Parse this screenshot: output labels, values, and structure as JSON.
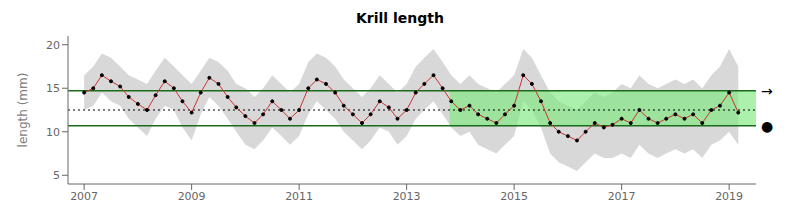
{
  "chart_data": {
    "type": "line",
    "title": "Krill length",
    "ylabel": "length (mm)",
    "xlim": [
      2006.7,
      2019.5
    ],
    "ylim": [
      4,
      21
    ],
    "xticks": [
      2007,
      2009,
      2011,
      2013,
      2015,
      2017,
      2019
    ],
    "yticks": [
      5,
      10,
      15,
      20
    ],
    "grid": false,
    "color": "#cc3333",
    "marker": "o",
    "marker_color": "black",
    "x": [
      2007.0,
      2007.17,
      2007.33,
      2007.5,
      2007.67,
      2007.83,
      2008.0,
      2008.17,
      2008.33,
      2008.5,
      2008.67,
      2008.83,
      2009.0,
      2009.17,
      2009.33,
      2009.5,
      2009.67,
      2009.83,
      2010.0,
      2010.17,
      2010.33,
      2010.5,
      2010.67,
      2010.83,
      2011.0,
      2011.17,
      2011.33,
      2011.5,
      2011.67,
      2011.83,
      2012.0,
      2012.17,
      2012.33,
      2012.5,
      2012.67,
      2012.83,
      2013.0,
      2013.17,
      2013.33,
      2013.5,
      2013.67,
      2013.83,
      2014.0,
      2014.17,
      2014.33,
      2014.5,
      2014.67,
      2014.83,
      2015.0,
      2015.17,
      2015.33,
      2015.5,
      2015.67,
      2015.83,
      2016.0,
      2016.17,
      2016.33,
      2016.5,
      2016.67,
      2016.83,
      2017.0,
      2017.17,
      2017.33,
      2017.5,
      2017.67,
      2017.83,
      2018.0,
      2018.17,
      2018.33,
      2018.5,
      2018.67,
      2018.83,
      2019.0,
      2019.17
    ],
    "values": [
      14.5,
      15.0,
      16.5,
      15.8,
      15.2,
      14.0,
      13.2,
      12.5,
      14.2,
      15.8,
      15.0,
      13.5,
      12.2,
      14.5,
      16.2,
      15.5,
      14.0,
      12.8,
      11.8,
      11.0,
      12.0,
      13.5,
      12.5,
      11.5,
      12.5,
      15.0,
      16.0,
      15.5,
      14.5,
      13.0,
      12.0,
      11.0,
      12.0,
      13.5,
      12.8,
      11.5,
      12.5,
      14.5,
      15.5,
      16.5,
      15.0,
      13.5,
      12.5,
      13.0,
      12.0,
      11.5,
      11.0,
      12.0,
      13.0,
      16.5,
      15.5,
      13.5,
      11.0,
      10.0,
      9.5,
      9.0,
      10.0,
      11.0,
      10.5,
      10.8,
      11.5,
      11.0,
      12.5,
      11.5,
      11.0,
      11.5,
      12.0,
      11.5,
      12.0,
      11.0,
      12.5,
      13.0,
      14.5,
      12.2
    ],
    "ci_upper": [
      16.5,
      17.5,
      19.0,
      18.5,
      17.5,
      16.5,
      16.0,
      15.5,
      17.0,
      18.5,
      17.5,
      16.5,
      15.5,
      17.0,
      18.5,
      18.0,
      17.0,
      15.5,
      15.0,
      14.0,
      15.0,
      16.5,
      15.5,
      14.5,
      15.5,
      18.0,
      19.0,
      18.5,
      17.5,
      16.0,
      15.0,
      14.0,
      15.0,
      16.5,
      15.5,
      14.5,
      15.5,
      17.5,
      18.5,
      19.5,
      18.0,
      16.5,
      15.5,
      16.5,
      15.5,
      15.0,
      14.5,
      15.5,
      16.5,
      19.5,
      18.5,
      16.5,
      14.5,
      13.5,
      13.0,
      12.5,
      13.5,
      14.5,
      14.0,
      14.5,
      15.5,
      15.0,
      16.5,
      15.5,
      15.0,
      15.5,
      16.0,
      15.5,
      16.0,
      15.0,
      16.5,
      17.5,
      19.5,
      17.5
    ],
    "ci_lower": [
      12.5,
      13.0,
      14.5,
      13.5,
      13.0,
      11.5,
      10.5,
      9.5,
      11.5,
      13.0,
      12.5,
      10.5,
      9.0,
      12.0,
      14.0,
      13.0,
      11.5,
      10.0,
      8.5,
      8.0,
      9.0,
      10.5,
      9.5,
      8.5,
      9.5,
      12.0,
      13.5,
      12.5,
      11.5,
      10.0,
      9.0,
      8.0,
      9.0,
      10.5,
      10.0,
      8.5,
      9.5,
      11.5,
      12.5,
      13.5,
      12.0,
      10.5,
      9.5,
      10.0,
      8.5,
      8.0,
      7.5,
      8.5,
      9.5,
      13.5,
      12.5,
      10.5,
      7.5,
      6.5,
      6.0,
      5.5,
      6.5,
      7.5,
      7.0,
      7.0,
      7.5,
      7.0,
      8.5,
      7.5,
      7.0,
      7.5,
      8.0,
      7.5,
      8.0,
      7.0,
      8.5,
      9.0,
      10.0,
      8.5
    ],
    "ci_color": "#b8b8b8",
    "hlines": [
      {
        "value": 14.7,
        "color": "#1a6b1a",
        "line_style": "solid"
      },
      {
        "value": 10.7,
        "color": "#1a6b1a",
        "line_style": "solid"
      },
      {
        "value": 12.5,
        "color": "black",
        "line_style": "dotted"
      }
    ],
    "shaded_region": {
      "x": [
        2013.8,
        2019.5
      ],
      "y": [
        10.7,
        14.7
      ],
      "color": "#7EE87E"
    },
    "annotations": [
      {
        "text": "→",
        "y": 14.7
      },
      {
        "text": "●",
        "y": 10.7
      }
    ]
  }
}
